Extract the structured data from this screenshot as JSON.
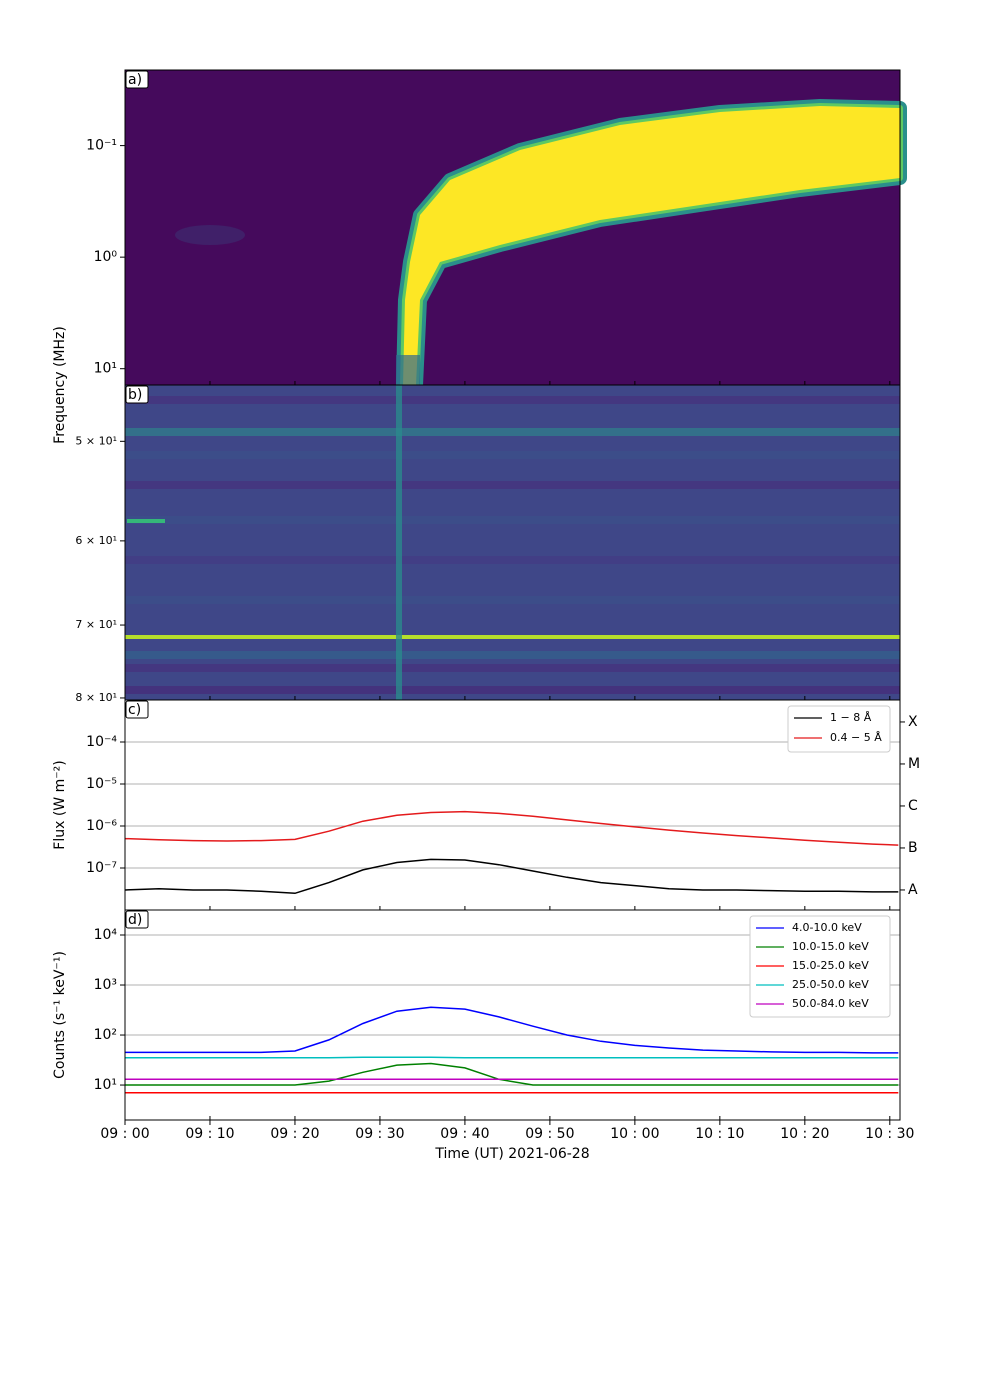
{
  "chart_data": [
    {
      "type": "spectrogram",
      "panel_label": "a)",
      "ylabel": "Frequency (MHz)",
      "log_y": true,
      "ylim": [
        14,
        0.021
      ],
      "yticks": [
        {
          "value": 0.1,
          "label": "10⁻¹"
        },
        {
          "value": 1,
          "label": "10⁰"
        },
        {
          "value": 10,
          "label": "10¹"
        }
      ]
    },
    {
      "type": "spectrogram",
      "panel_label": "b)",
      "log_y": true,
      "ylim": [
        80.3,
        45.1
      ],
      "yticks": [
        {
          "value": 50,
          "label": "5 × 10¹"
        },
        {
          "value": 60,
          "label": "6 × 10¹"
        },
        {
          "value": 70,
          "label": "7 × 10¹"
        },
        {
          "value": 80,
          "label": "8 × 10¹"
        }
      ]
    },
    {
      "type": "line",
      "panel_label": "c)",
      "ylabel": "Flux (W m⁻²)",
      "log_y": true,
      "grid": true,
      "legend": "upper right",
      "ylim": [
        1e-08,
        0.001
      ],
      "yticks": [
        {
          "value": 1e-07,
          "label": "10⁻⁷"
        },
        {
          "value": 1e-06,
          "label": "10⁻⁶"
        },
        {
          "value": 1e-05,
          "label": "10⁻⁵"
        },
        {
          "value": 0.0001,
          "label": "10⁻⁴"
        }
      ],
      "y2ticks": [
        {
          "value": 3e-08,
          "label": "A"
        },
        {
          "value": 3e-07,
          "label": "B"
        },
        {
          "value": 3e-06,
          "label": "C"
        },
        {
          "value": 3e-05,
          "label": "M"
        },
        {
          "value": 0.0003,
          "label": "X"
        }
      ],
      "x": [
        0,
        4,
        8,
        12,
        16,
        20,
        24,
        28,
        32,
        36,
        40,
        44,
        48,
        52,
        56,
        60,
        64,
        68,
        72,
        76,
        80,
        84,
        88,
        91
      ],
      "series": [
        {
          "name": "1 − 8 Å",
          "color": "#000000",
          "values": [
            3e-08,
            3.2e-08,
            3e-08,
            3e-08,
            2.8e-08,
            2.5e-08,
            4.5e-08,
            9e-08,
            1.35e-07,
            1.6e-07,
            1.55e-07,
            1.2e-07,
            8.5e-08,
            6e-08,
            4.5e-08,
            3.8e-08,
            3.2e-08,
            3e-08,
            3e-08,
            2.9e-08,
            2.8e-08,
            2.8e-08,
            2.7e-08,
            2.7e-08
          ]
        },
        {
          "name": "0.4 − 5 Å",
          "color": "#e41a1c",
          "values": [
            5e-07,
            4.7e-07,
            4.5e-07,
            4.4e-07,
            4.5e-07,
            4.8e-07,
            7.5e-07,
            1.3e-06,
            1.8e-06,
            2.1e-06,
            2.2e-06,
            2e-06,
            1.7e-06,
            1.4e-06,
            1.15e-06,
            9.5e-07,
            8e-07,
            6.8e-07,
            5.9e-07,
            5.2e-07,
            4.6e-07,
            4.1e-07,
            3.7e-07,
            3.5e-07
          ]
        }
      ]
    },
    {
      "type": "line",
      "panel_label": "d)",
      "ylabel": "Counts (s⁻¹ keV⁻¹)",
      "xlabel": "Time (UT) 2021-06-28",
      "log_y": true,
      "grid": true,
      "legend": "upper right",
      "ylim": [
        2,
        31623
      ],
      "xlim": [
        0,
        91.2
      ],
      "xticks": [
        {
          "value": 0,
          "label": "09 : 00"
        },
        {
          "value": 10,
          "label": "09 : 10"
        },
        {
          "value": 20,
          "label": "09 : 20"
        },
        {
          "value": 30,
          "label": "09 : 30"
        },
        {
          "value": 40,
          "label": "09 : 40"
        },
        {
          "value": 50,
          "label": "09 : 50"
        },
        {
          "value": 60,
          "label": "10 : 00"
        },
        {
          "value": 70,
          "label": "10 : 10"
        },
        {
          "value": 80,
          "label": "10 : 20"
        },
        {
          "value": 90,
          "label": "10 : 30"
        }
      ],
      "yticks": [
        {
          "value": 10,
          "label": "10¹"
        },
        {
          "value": 100,
          "label": "10²"
        },
        {
          "value": 1000,
          "label": "10³"
        },
        {
          "value": 10000,
          "label": "10⁴"
        }
      ],
      "x": [
        0,
        4,
        8,
        12,
        16,
        20,
        24,
        28,
        32,
        36,
        40,
        44,
        48,
        52,
        56,
        60,
        64,
        68,
        72,
        76,
        80,
        84,
        88,
        91
      ],
      "series": [
        {
          "name": "4.0-10.0  keV",
          "color": "#0000ff",
          "values": [
            45,
            45,
            45,
            45,
            45,
            48,
            80,
            170,
            300,
            360,
            330,
            230,
            150,
            100,
            75,
            62,
            55,
            50,
            48,
            46,
            45,
            45,
            44,
            44
          ]
        },
        {
          "name": "10.0-15.0  keV",
          "color": "#008000",
          "values": [
            10,
            10,
            10,
            10,
            10,
            10,
            12,
            18,
            25,
            27,
            22,
            13,
            10,
            10,
            10,
            10,
            10,
            10,
            10,
            10,
            10,
            10,
            10,
            10
          ]
        },
        {
          "name": "15.0-25.0  keV",
          "color": "#ff0000",
          "values": [
            7,
            7,
            7,
            7,
            7,
            7,
            7,
            7,
            7,
            7,
            7,
            7,
            7,
            7,
            7,
            7,
            7,
            7,
            7,
            7,
            7,
            7,
            7,
            7
          ]
        },
        {
          "name": "25.0-50.0  keV",
          "color": "#00bfbf",
          "values": [
            35,
            35,
            35,
            35,
            35,
            35,
            35,
            36,
            36,
            36,
            35,
            35,
            35,
            35,
            35,
            35,
            35,
            35,
            35,
            35,
            35,
            35,
            35,
            35
          ]
        },
        {
          "name": "50.0-84.0  keV",
          "color": "#bf00bf",
          "values": [
            13,
            13,
            13,
            13,
            13,
            13,
            13,
            13,
            13,
            13,
            13,
            13,
            13,
            13,
            13,
            13,
            13,
            13,
            13,
            13,
            13,
            13,
            13,
            13
          ]
        }
      ]
    }
  ]
}
